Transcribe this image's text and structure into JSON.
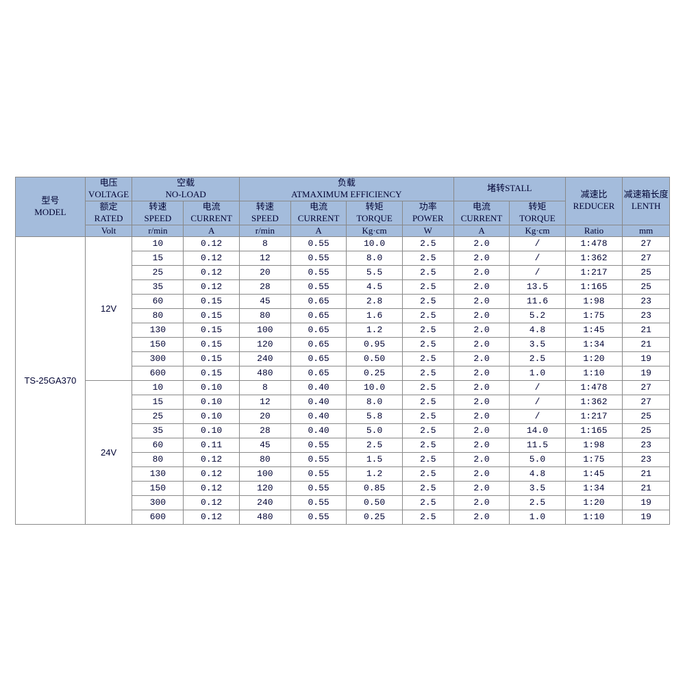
{
  "table": {
    "type": "table",
    "header_bg": "#a4bcdc",
    "border_color": "#888888",
    "text_color": "#000333",
    "font_size_header": 13,
    "font_size_body": 13,
    "groups": {
      "model": {
        "cn": "型号",
        "en": "MODEL"
      },
      "voltage": {
        "cn": "电压",
        "en": "VOLTAGE",
        "cn2": "额定",
        "en2": "RATED",
        "unit": "Volt"
      },
      "noload": {
        "cn": "空载",
        "en": "NO-LOAD"
      },
      "maxeff": {
        "cn": "负载",
        "en": "ATMAXIMUM EFFICIENCY"
      },
      "stall": {
        "cn": "堵转STALL"
      },
      "reducer": {
        "cn": "减速比",
        "en": "REDUCER",
        "unit": "Ratio"
      },
      "length": {
        "cn": "减速箱长度",
        "en": "LENTH",
        "unit": "mm"
      }
    },
    "subcols": {
      "nl_speed": {
        "cn": "转速",
        "en": "SPEED",
        "unit": "r/min"
      },
      "nl_curr": {
        "cn": "电流",
        "en": "CURRENT",
        "unit": "A"
      },
      "me_speed": {
        "cn": "转速",
        "en": "SPEED",
        "unit": "r/min"
      },
      "me_curr": {
        "cn": "电流",
        "en": "CURRENT",
        "unit": "A"
      },
      "me_torq": {
        "cn": "转矩",
        "en": "TORQUE",
        "unit": "Kg·cm"
      },
      "me_pwr": {
        "cn": "功率",
        "en": "POWER",
        "unit": "W"
      },
      "st_curr": {
        "cn": "电流",
        "en": "CURRENT",
        "unit": "A"
      },
      "st_torq": {
        "cn": "转矩",
        "en": "TORQUE",
        "unit": "Kg·cm"
      }
    },
    "model_value": "TS-25GA370",
    "voltage_sections": [
      {
        "voltage": "12V",
        "rows": [
          [
            "10",
            "0.12",
            "8",
            "0.55",
            "10.0",
            "2.5",
            "2.0",
            "/",
            "1:478",
            "27"
          ],
          [
            "15",
            "0.12",
            "12",
            "0.55",
            "8.0",
            "2.5",
            "2.0",
            "/",
            "1:362",
            "27"
          ],
          [
            "25",
            "0.12",
            "20",
            "0.55",
            "5.5",
            "2.5",
            "2.0",
            "/",
            "1:217",
            "25"
          ],
          [
            "35",
            "0.12",
            "28",
            "0.55",
            "4.5",
            "2.5",
            "2.0",
            "13.5",
            "1:165",
            "25"
          ],
          [
            "60",
            "0.15",
            "45",
            "0.65",
            "2.8",
            "2.5",
            "2.0",
            "11.6",
            "1:98",
            "23"
          ],
          [
            "80",
            "0.15",
            "80",
            "0.65",
            "1.6",
            "2.5",
            "2.0",
            "5.2",
            "1:75",
            "23"
          ],
          [
            "130",
            "0.15",
            "100",
            "0.65",
            "1.2",
            "2.5",
            "2.0",
            "4.8",
            "1:45",
            "21"
          ],
          [
            "150",
            "0.15",
            "120",
            "0.65",
            "0.95",
            "2.5",
            "2.0",
            "3.5",
            "1:34",
            "21"
          ],
          [
            "300",
            "0.15",
            "240",
            "0.65",
            "0.50",
            "2.5",
            "2.0",
            "2.5",
            "1:20",
            "19"
          ],
          [
            "600",
            "0.15",
            "480",
            "0.65",
            "0.25",
            "2.5",
            "2.0",
            "1.0",
            "1:10",
            "19"
          ]
        ]
      },
      {
        "voltage": "24V",
        "rows": [
          [
            "10",
            "0.10",
            "8",
            "0.40",
            "10.0",
            "2.5",
            "2.0",
            "/",
            "1:478",
            "27"
          ],
          [
            "15",
            "0.10",
            "12",
            "0.40",
            "8.0",
            "2.5",
            "2.0",
            "/",
            "1:362",
            "27"
          ],
          [
            "25",
            "0.10",
            "20",
            "0.40",
            "5.8",
            "2.5",
            "2.0",
            "/",
            "1:217",
            "25"
          ],
          [
            "35",
            "0.10",
            "28",
            "0.40",
            "5.0",
            "2.5",
            "2.0",
            "14.0",
            "1:165",
            "25"
          ],
          [
            "60",
            "0.11",
            "45",
            "0.55",
            "2.5",
            "2.5",
            "2.0",
            "11.5",
            "1:98",
            "23"
          ],
          [
            "80",
            "0.12",
            "80",
            "0.55",
            "1.5",
            "2.5",
            "2.0",
            "5.0",
            "1:75",
            "23"
          ],
          [
            "130",
            "0.12",
            "100",
            "0.55",
            "1.2",
            "2.5",
            "2.0",
            "4.8",
            "1:45",
            "21"
          ],
          [
            "150",
            "0.12",
            "120",
            "0.55",
            "0.85",
            "2.5",
            "2.0",
            "3.5",
            "1:34",
            "21"
          ],
          [
            "300",
            "0.12",
            "240",
            "0.55",
            "0.50",
            "2.5",
            "2.0",
            "2.5",
            "1:20",
            "19"
          ],
          [
            "600",
            "0.12",
            "480",
            "0.55",
            "0.25",
            "2.5",
            "2.0",
            "1.0",
            "1:10",
            "19"
          ]
        ]
      }
    ]
  }
}
